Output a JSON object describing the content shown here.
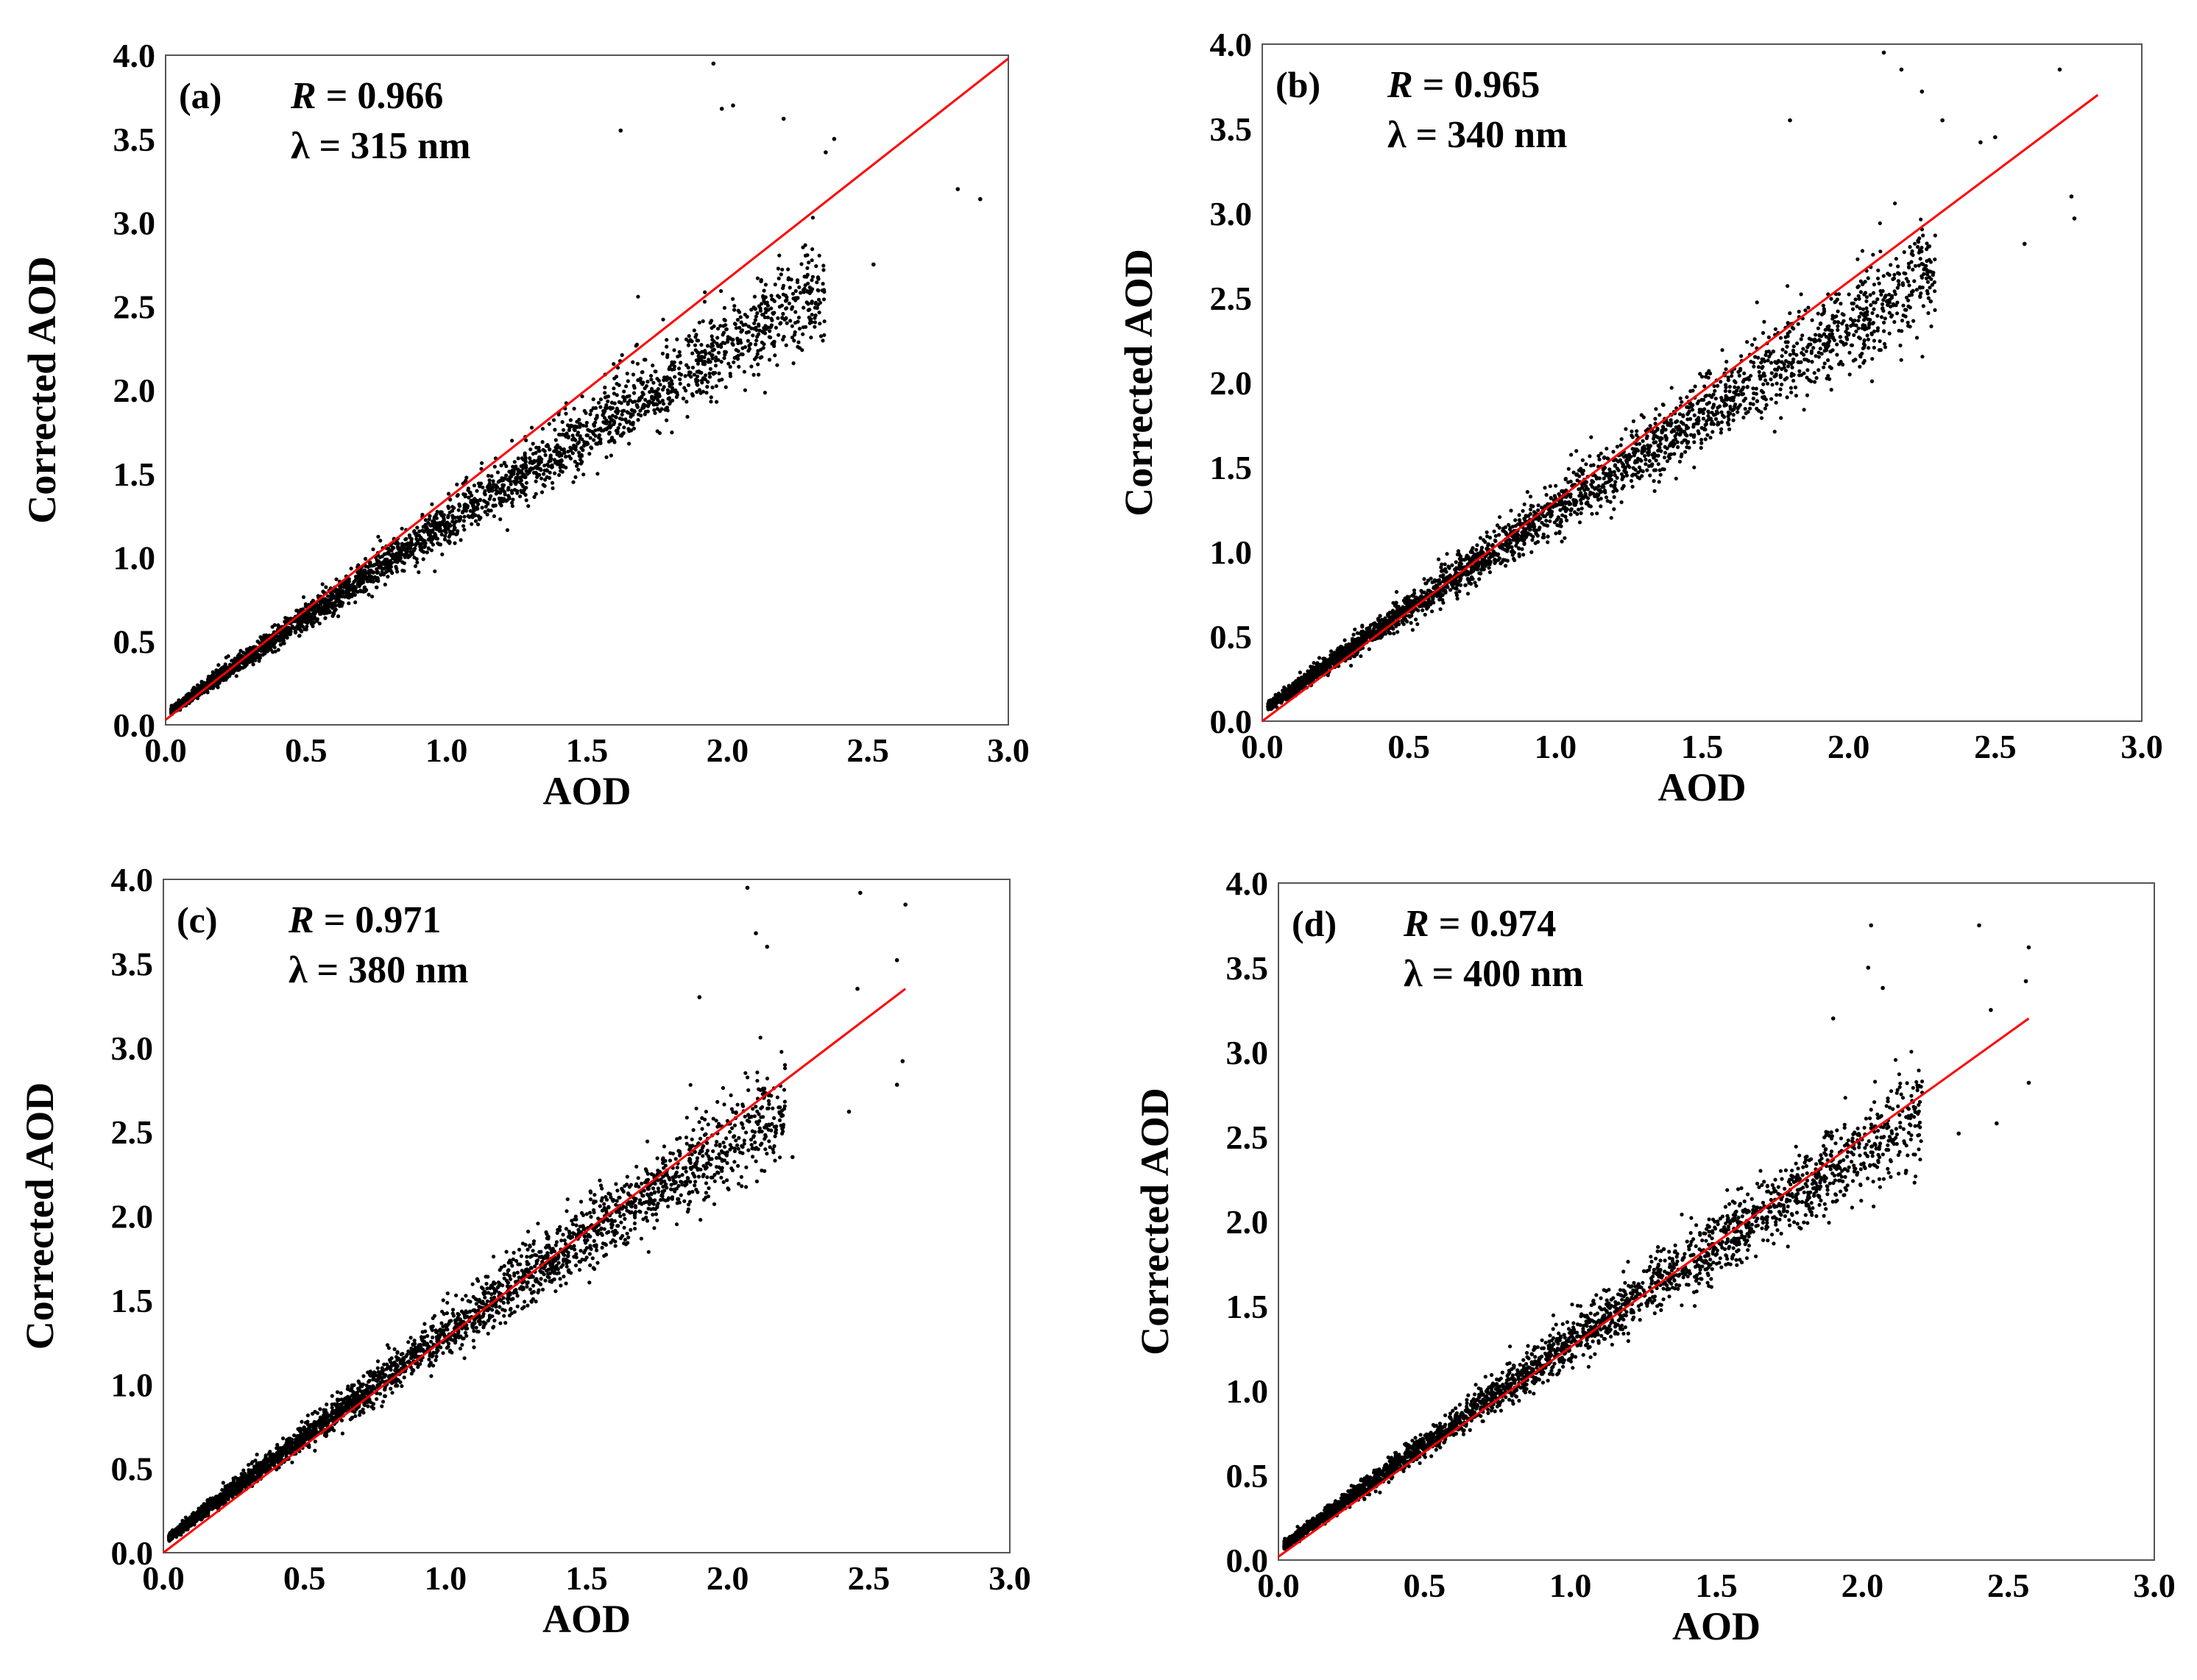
{
  "figure": {
    "description_free": true
  },
  "colors": {
    "points": "#000000",
    "fit_line": "#ff0000",
    "frame": "#555555",
    "background": "#ffffff"
  },
  "chart_data": [
    {
      "type": "scatter",
      "panel": "(a)",
      "r_label": "R",
      "r_value": "0.966",
      "lambda_label": "λ",
      "lambda_value": "315 nm",
      "xlabel": "AOD",
      "ylabel": "Corrected AOD",
      "xlim": [
        0,
        3.0
      ],
      "ylim": [
        0,
        4.0
      ],
      "xticks": [
        "0.0",
        "0.5",
        "1.0",
        "1.5",
        "2.0",
        "2.5",
        "3.0"
      ],
      "yticks": [
        "0.0",
        "0.5",
        "1.0",
        "1.5",
        "2.0",
        "2.5",
        "3.0",
        "3.5",
        "4.0"
      ],
      "fit_line": {
        "x": [
          0.0,
          3.0
        ],
        "y": [
          0.03,
          3.98
        ]
      },
      "point_params": {
        "seed": 11,
        "n": 3200,
        "max_x": 2.45,
        "slope": 1.18,
        "spread": 0.12
      },
      "outliers": [
        [
          1.95,
          3.95
        ],
        [
          1.98,
          3.68
        ],
        [
          2.02,
          3.7
        ],
        [
          2.38,
          3.5
        ],
        [
          2.35,
          3.42
        ],
        [
          2.2,
          3.62
        ],
        [
          2.82,
          3.2
        ],
        [
          2.9,
          3.14
        ],
        [
          2.52,
          2.75
        ],
        [
          2.25,
          2.55
        ],
        [
          2.3,
          2.52
        ],
        [
          2.12,
          2.65
        ],
        [
          1.62,
          3.55
        ]
      ],
      "grid": false,
      "legend": "none"
    },
    {
      "type": "scatter",
      "panel": "(b)",
      "r_label": "R",
      "r_value": "0.965",
      "lambda_label": "λ",
      "lambda_value": "340 nm",
      "xlabel": "AOD",
      "ylabel": "Corrected AOD",
      "xlim": [
        0,
        3.0
      ],
      "ylim": [
        0,
        4.0
      ],
      "xticks": [
        "0.0",
        "0.5",
        "1.0",
        "1.5",
        "2.0",
        "2.5",
        "3.0"
      ],
      "yticks": [
        "0.0",
        "0.5",
        "1.0",
        "1.5",
        "2.0",
        "2.5",
        "3.0",
        "3.5",
        "4.0"
      ],
      "fit_line": {
        "x": [
          0.0,
          2.85
        ],
        "y": [
          0.0,
          3.7
        ]
      },
      "point_params": {
        "seed": 22,
        "n": 3300,
        "max_x": 2.4,
        "slope": 1.22,
        "spread": 0.13
      },
      "outliers": [
        [
          2.12,
          3.95
        ],
        [
          2.18,
          3.85
        ],
        [
          2.25,
          3.72
        ],
        [
          2.32,
          3.55
        ],
        [
          2.45,
          3.42
        ],
        [
          2.5,
          3.45
        ],
        [
          2.72,
          3.85
        ],
        [
          2.76,
          3.1
        ],
        [
          2.77,
          2.97
        ],
        [
          2.6,
          2.82
        ],
        [
          2.28,
          2.48
        ],
        [
          2.17,
          2.6
        ],
        [
          1.8,
          3.55
        ]
      ],
      "grid": false,
      "legend": "none"
    },
    {
      "type": "scatter",
      "panel": "(c)",
      "r_label": "R",
      "r_value": "0.971",
      "lambda_label": "λ",
      "lambda_value": "380 nm",
      "xlabel": "AOD",
      "ylabel": "Corrected AOD",
      "xlim": [
        0,
        3.0
      ],
      "ylim": [
        0,
        4.0
      ],
      "xticks": [
        "0.0",
        "0.5",
        "1.0",
        "1.5",
        "2.0",
        "2.5",
        "3.0"
      ],
      "yticks": [
        "0.0",
        "0.5",
        "1.0",
        "1.5",
        "2.0",
        "2.5",
        "3.0",
        "3.5",
        "4.0"
      ],
      "fit_line": {
        "x": [
          0.0,
          2.63
        ],
        "y": [
          0.0,
          3.35
        ]
      },
      "point_params": {
        "seed": 33,
        "n": 3300,
        "max_x": 2.3,
        "slope": 1.27,
        "spread": 0.12
      },
      "outliers": [
        [
          2.07,
          3.95
        ],
        [
          2.1,
          3.68
        ],
        [
          2.14,
          3.6
        ],
        [
          2.47,
          3.92
        ],
        [
          2.63,
          3.85
        ],
        [
          2.6,
          3.52
        ],
        [
          2.46,
          3.35
        ],
        [
          2.62,
          2.92
        ],
        [
          2.6,
          2.78
        ],
        [
          2.43,
          2.62
        ],
        [
          2.23,
          2.35
        ],
        [
          1.9,
          3.3
        ]
      ],
      "grid": false,
      "legend": "none"
    },
    {
      "type": "scatter",
      "panel": "(d)",
      "r_label": "R",
      "r_value": "0.974",
      "lambda_label": "λ",
      "lambda_value": "400 nm",
      "xlabel": "AOD",
      "ylabel": "Corrected AOD",
      "xlim": [
        0,
        3.0
      ],
      "ylim": [
        0,
        4.0
      ],
      "xticks": [
        "0.0",
        "0.5",
        "1.0",
        "1.5",
        "2.0",
        "2.5",
        "3.0"
      ],
      "yticks": [
        "0.0",
        "0.5",
        "1.0",
        "1.5",
        "2.0",
        "2.5",
        "3.0",
        "3.5",
        "4.0"
      ],
      "fit_line": {
        "x": [
          0.0,
          2.57
        ],
        "y": [
          0.02,
          3.2
        ]
      },
      "point_params": {
        "seed": 44,
        "n": 3100,
        "max_x": 2.3,
        "slope": 1.26,
        "spread": 0.12
      },
      "outliers": [
        [
          2.03,
          3.75
        ],
        [
          2.02,
          3.5
        ],
        [
          2.07,
          3.38
        ],
        [
          2.4,
          3.75
        ],
        [
          2.57,
          3.62
        ],
        [
          2.56,
          3.42
        ],
        [
          2.44,
          3.25
        ],
        [
          2.57,
          2.82
        ],
        [
          2.46,
          2.58
        ],
        [
          2.33,
          2.52
        ],
        [
          2.15,
          2.3
        ],
        [
          1.9,
          3.2
        ]
      ],
      "grid": false,
      "legend": "none"
    }
  ]
}
